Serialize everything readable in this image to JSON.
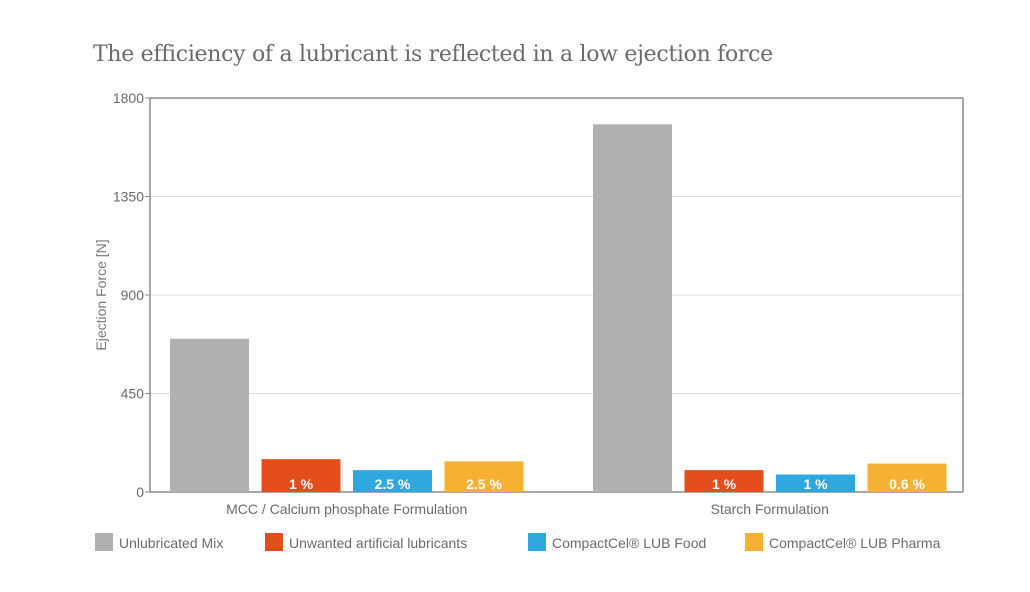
{
  "chart_data": {
    "type": "bar",
    "title": "The efficiency of a lubricant is reflected in a low ejection force",
    "xlabel": "",
    "ylabel": "Ejection Force [N]",
    "ylim": [
      0,
      1800
    ],
    "yticks": [
      "0",
      "450",
      "900",
      "1350",
      "1800"
    ],
    "grid": true,
    "legend_position": "bottom",
    "categories": [
      "MCC / Calcium phosphate Formulation",
      "Starch Formulation"
    ],
    "series": [
      {
        "name": "Unlubricated Mix",
        "color": "#b1b0b1",
        "values": [
          700,
          1680
        ],
        "labels": [
          "",
          ""
        ]
      },
      {
        "name": "Unwanted artificial lubricants",
        "color": "#e44d1c",
        "values": [
          150,
          100
        ],
        "labels": [
          "1 %",
          "1 %"
        ]
      },
      {
        "name": "CompactCel® LUB Food",
        "color": "#2ea8df",
        "values": [
          100,
          80
        ],
        "labels": [
          "2.5 %",
          "1 %"
        ]
      },
      {
        "name": "CompactCel® LUB Pharma",
        "color": "#f6b133",
        "values": [
          140,
          130
        ],
        "labels": [
          "2.5 %",
          "0.6 %"
        ]
      }
    ]
  }
}
